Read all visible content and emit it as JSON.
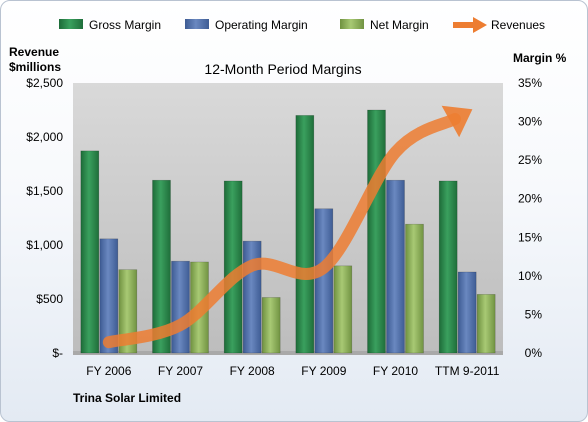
{
  "chart_data": {
    "type": "bar",
    "title": "12-Month Period Margins",
    "categories": [
      "FY 2006",
      "FY 2007",
      "FY 2008",
      "FY 2009",
      "FY 2010",
      "TTM 9-2011"
    ],
    "series": [
      {
        "name": "Gross Margin",
        "kind": "bar",
        "axis": "right",
        "color": "#2e8b4e",
        "values": [
          26.2,
          22.4,
          22.3,
          30.8,
          31.5,
          22.3
        ]
      },
      {
        "name": "Operating Margin",
        "kind": "bar",
        "axis": "right",
        "color": "#4f6fa8",
        "values": [
          14.8,
          11.9,
          14.5,
          18.7,
          22.4,
          10.5
        ]
      },
      {
        "name": "Net Margin",
        "kind": "bar",
        "axis": "right",
        "color": "#8fb25a",
        "values": [
          10.8,
          11.8,
          7.2,
          11.3,
          16.7,
          7.6
        ]
      },
      {
        "name": "Revenues",
        "kind": "line",
        "axis": "left",
        "color": "#ed7d31",
        "values": [
          100,
          260,
          810,
          790,
          1860,
          2230
        ]
      }
    ],
    "left_axis": {
      "label_line1": "Revenue",
      "label_line2": "$millions",
      "min": 0,
      "max": 2500,
      "step": 500,
      "tick_labels": [
        "$-",
        "$500",
        "$1,000",
        "$1,500",
        "$2,000",
        "$2,500"
      ]
    },
    "right_axis": {
      "label": "Margin %",
      "min": 0,
      "max": 35,
      "step": 5,
      "tick_labels": [
        "0%",
        "5%",
        "10%",
        "15%",
        "20%",
        "25%",
        "30%",
        "35%"
      ]
    },
    "grid": false,
    "legend_position": "top"
  },
  "footer": "Trina Solar Limited"
}
